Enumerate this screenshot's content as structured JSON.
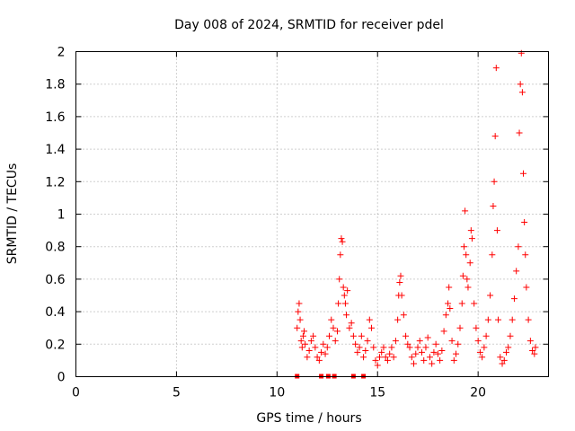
{
  "chart_data": {
    "type": "scatter",
    "title": "Day 008 of 2024, SRMTID for receiver pdel",
    "xlabel": "GPS time / hours",
    "ylabel": "SRMTID / TECUs",
    "xlim": [
      0,
      23.5
    ],
    "ylim": [
      0,
      2
    ],
    "x_ticks": [
      0,
      5,
      10,
      15,
      20
    ],
    "x_tick_labels": [
      "0",
      "5",
      "10",
      "15",
      "20"
    ],
    "y_ticks": [
      0,
      0.2,
      0.4,
      0.6,
      0.8,
      1,
      1.2,
      1.4,
      1.6,
      1.8,
      2
    ],
    "y_tick_labels": [
      "0",
      "0.2",
      "0.4",
      "0.6",
      "0.8",
      "1",
      "1.2",
      "1.4",
      "1.6",
      "1.8",
      "2"
    ],
    "grid": true,
    "marker": "plus",
    "color": "#ff0000",
    "series": [
      {
        "name": "SRMTID",
        "points": [
          [
            11.0,
            0.3
          ],
          [
            11.05,
            0.4
          ],
          [
            11.1,
            0.45
          ],
          [
            11.15,
            0.35
          ],
          [
            11.2,
            0.22
          ],
          [
            11.25,
            0.18
          ],
          [
            11.3,
            0.25
          ],
          [
            11.35,
            0.28
          ],
          [
            11.4,
            0.2
          ],
          [
            11.5,
            0.12
          ],
          [
            11.6,
            0.16
          ],
          [
            11.7,
            0.22
          ],
          [
            11.8,
            0.25
          ],
          [
            11.9,
            0.18
          ],
          [
            12.0,
            0.12
          ],
          [
            12.1,
            0.1
          ],
          [
            12.2,
            0.15
          ],
          [
            12.3,
            0.2
          ],
          [
            12.4,
            0.14
          ],
          [
            12.5,
            0.18
          ],
          [
            12.6,
            0.25
          ],
          [
            12.7,
            0.35
          ],
          [
            12.8,
            0.3
          ],
          [
            12.9,
            0.22
          ],
          [
            13.0,
            0.28
          ],
          [
            13.05,
            0.45
          ],
          [
            13.1,
            0.6
          ],
          [
            13.15,
            0.75
          ],
          [
            13.2,
            0.85
          ],
          [
            13.25,
            0.83
          ],
          [
            13.3,
            0.55
          ],
          [
            13.35,
            0.5
          ],
          [
            13.4,
            0.45
          ],
          [
            13.45,
            0.38
          ],
          [
            13.5,
            0.53
          ],
          [
            13.6,
            0.3
          ],
          [
            13.7,
            0.33
          ],
          [
            13.8,
            0.25
          ],
          [
            13.9,
            0.2
          ],
          [
            14.0,
            0.15
          ],
          [
            14.1,
            0.18
          ],
          [
            14.2,
            0.25
          ],
          [
            14.3,
            0.12
          ],
          [
            14.4,
            0.16
          ],
          [
            14.5,
            0.22
          ],
          [
            14.6,
            0.35
          ],
          [
            14.7,
            0.3
          ],
          [
            14.8,
            0.18
          ],
          [
            14.9,
            0.1
          ],
          [
            15.0,
            0.07
          ],
          [
            15.1,
            0.12
          ],
          [
            15.2,
            0.15
          ],
          [
            15.3,
            0.18
          ],
          [
            15.4,
            0.12
          ],
          [
            15.5,
            0.1
          ],
          [
            15.6,
            0.14
          ],
          [
            15.7,
            0.18
          ],
          [
            15.8,
            0.12
          ],
          [
            15.9,
            0.22
          ],
          [
            16.0,
            0.35
          ],
          [
            16.05,
            0.5
          ],
          [
            16.1,
            0.58
          ],
          [
            16.15,
            0.62
          ],
          [
            16.2,
            0.5
          ],
          [
            16.3,
            0.38
          ],
          [
            16.4,
            0.25
          ],
          [
            16.5,
            0.2
          ],
          [
            16.6,
            0.18
          ],
          [
            16.7,
            0.12
          ],
          [
            16.8,
            0.08
          ],
          [
            16.9,
            0.14
          ],
          [
            17.0,
            0.18
          ],
          [
            17.1,
            0.22
          ],
          [
            17.2,
            0.15
          ],
          [
            17.3,
            0.1
          ],
          [
            17.4,
            0.18
          ],
          [
            17.5,
            0.24
          ],
          [
            17.6,
            0.12
          ],
          [
            17.7,
            0.08
          ],
          [
            17.8,
            0.15
          ],
          [
            17.9,
            0.2
          ],
          [
            18.0,
            0.14
          ],
          [
            18.1,
            0.1
          ],
          [
            18.2,
            0.16
          ],
          [
            18.3,
            0.28
          ],
          [
            18.4,
            0.38
          ],
          [
            18.5,
            0.45
          ],
          [
            18.55,
            0.55
          ],
          [
            18.6,
            0.42
          ],
          [
            18.7,
            0.22
          ],
          [
            18.8,
            0.1
          ],
          [
            18.9,
            0.14
          ],
          [
            19.0,
            0.2
          ],
          [
            19.1,
            0.3
          ],
          [
            19.2,
            0.45
          ],
          [
            19.25,
            0.62
          ],
          [
            19.3,
            0.8
          ],
          [
            19.35,
            1.02
          ],
          [
            19.4,
            0.75
          ],
          [
            19.45,
            0.6
          ],
          [
            19.5,
            0.55
          ],
          [
            19.6,
            0.7
          ],
          [
            19.65,
            0.9
          ],
          [
            19.7,
            0.85
          ],
          [
            19.8,
            0.45
          ],
          [
            19.9,
            0.3
          ],
          [
            20.0,
            0.22
          ],
          [
            20.1,
            0.15
          ],
          [
            20.2,
            0.12
          ],
          [
            20.3,
            0.18
          ],
          [
            20.4,
            0.25
          ],
          [
            20.5,
            0.35
          ],
          [
            20.6,
            0.5
          ],
          [
            20.7,
            0.75
          ],
          [
            20.75,
            1.05
          ],
          [
            20.8,
            1.2
          ],
          [
            20.85,
            1.48
          ],
          [
            20.9,
            1.9
          ],
          [
            20.95,
            0.9
          ],
          [
            21.0,
            0.35
          ],
          [
            21.1,
            0.12
          ],
          [
            21.2,
            0.08
          ],
          [
            21.3,
            0.1
          ],
          [
            21.4,
            0.15
          ],
          [
            21.5,
            0.18
          ],
          [
            21.6,
            0.25
          ],
          [
            21.7,
            0.35
          ],
          [
            21.8,
            0.48
          ],
          [
            21.9,
            0.65
          ],
          [
            22.0,
            0.8
          ],
          [
            22.05,
            1.5
          ],
          [
            22.1,
            1.8
          ],
          [
            22.15,
            1.99
          ],
          [
            22.2,
            1.75
          ],
          [
            22.25,
            1.25
          ],
          [
            22.3,
            0.95
          ],
          [
            22.35,
            0.75
          ],
          [
            22.4,
            0.55
          ],
          [
            22.5,
            0.35
          ],
          [
            22.6,
            0.22
          ],
          [
            22.7,
            0.16
          ],
          [
            22.8,
            0.14
          ],
          [
            22.85,
            0.18
          ]
        ]
      },
      {
        "name": "zero-markers",
        "points": [
          [
            11.0,
            0
          ],
          [
            12.2,
            0
          ],
          [
            12.55,
            0
          ],
          [
            12.85,
            0
          ],
          [
            13.8,
            0
          ],
          [
            14.3,
            0
          ]
        ]
      }
    ]
  }
}
